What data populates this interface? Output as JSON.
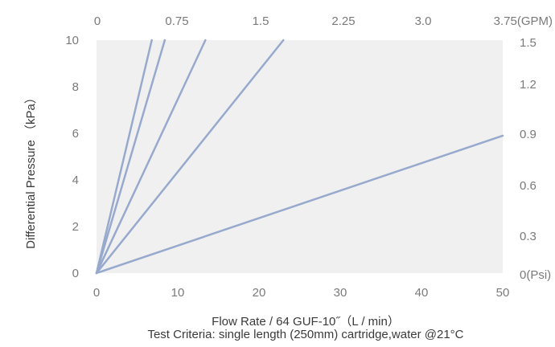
{
  "chart_data": {
    "type": "line",
    "xlabel": "Flow Rate / 64 GUF-10˝（L / min）",
    "ylabel": "Differential Pressure （kPa）",
    "subtitle": "Test Criteria: single length (250mm) cartridge,water @21°C",
    "xlim": [
      0,
      50
    ],
    "ylim": [
      0,
      10
    ],
    "x_ticks": [
      "0",
      "10",
      "20",
      "30",
      "40",
      "50"
    ],
    "y_ticks": [
      "0",
      "2",
      "4",
      "6",
      "8",
      "10"
    ],
    "top_ticks": [
      "0",
      "0.75",
      "1.5",
      "2.25",
      "3.0",
      "3.75(GPM)"
    ],
    "right_ticks": [
      "0(Psi)",
      "0.3",
      "0.6",
      "0.9",
      "1.2",
      "1.5"
    ],
    "grid": false,
    "series": [
      {
        "x": [
          0,
          6.8
        ],
        "y": [
          0,
          10
        ]
      },
      {
        "x": [
          0,
          8.4
        ],
        "y": [
          0,
          10
        ]
      },
      {
        "x": [
          0,
          13.4
        ],
        "y": [
          0,
          10
        ]
      },
      {
        "x": [
          0,
          23.0
        ],
        "y": [
          0,
          10
        ]
      },
      {
        "x": [
          0,
          50
        ],
        "y": [
          0,
          5.9
        ]
      }
    ]
  },
  "colors": {
    "line": "#97a9cd",
    "plot_bg": "#f0f0f0",
    "tick_text": "#7a7a7a",
    "title_text": "#3a3a3a"
  }
}
